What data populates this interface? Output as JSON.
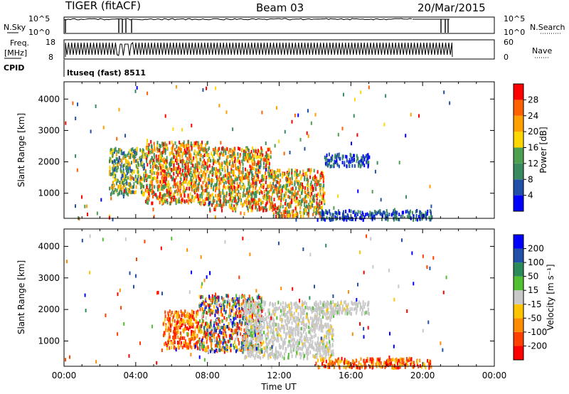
{
  "header": {
    "radar": "TIGER (fitACF)",
    "beam": "Beam 03",
    "date": "20/Mar/2015"
  },
  "strips": {
    "nsky": {
      "label": "N.Sky",
      "ticks": [
        "10^5",
        "10^0"
      ]
    },
    "nsearch": {
      "label": "N.Search",
      "ticks": [
        "10^5",
        "10^0"
      ]
    },
    "freq": {
      "label_line1": "Freq.",
      "label_line2": "[MHz]",
      "ticks": [
        "18",
        "8"
      ]
    },
    "nave": {
      "label": "Nave",
      "ticks": [
        "60",
        "0"
      ]
    },
    "cpid": {
      "label": "CPID",
      "value": "ltuseq (fast) 8511"
    }
  },
  "colors": {
    "power": [
      "#0000ff",
      "#2050a8",
      "#3a8a60",
      "#4ca050",
      "#ffd700",
      "#ffa000",
      "#ff6000",
      "#ff0000"
    ],
    "velocity": [
      "#ff0000",
      "#ff4000",
      "#ff8c00",
      "#ffc400",
      "#c8c8c8",
      "#50c030",
      "#2a8a5a",
      "#2050a8",
      "#0000ff"
    ]
  },
  "chart_data": [
    {
      "type": "heatmap",
      "title": "",
      "xlabel": "Time UT",
      "ylabel": "Slant Range [km]",
      "x_ticks": [
        "00:00",
        "04:00",
        "08:00",
        "12:00",
        "16:00",
        "20:00",
        "00:00"
      ],
      "xlim_hours": [
        0,
        24
      ],
      "y_ticks": [
        1000,
        2000,
        3000,
        4000
      ],
      "ylim": [
        200,
        4550
      ],
      "colorbar": {
        "label": "Power [dB]",
        "ticks": [
          "4",
          "8",
          "12",
          "16",
          "20",
          "24",
          "28"
        ],
        "range": [
          0,
          32
        ]
      },
      "echo_regions": [
        {
          "t_start": 2.5,
          "t_end": 4.5,
          "r_min": 1000,
          "r_max": 2500,
          "level": "mid"
        },
        {
          "t_start": 4.5,
          "t_end": 8.0,
          "r_min": 700,
          "r_max": 2700,
          "level": "high"
        },
        {
          "t_start": 8.0,
          "t_end": 11.5,
          "r_min": 500,
          "r_max": 2500,
          "level": "high"
        },
        {
          "t_start": 11.5,
          "t_end": 14.5,
          "r_min": 300,
          "r_max": 1800,
          "level": "high"
        },
        {
          "t_start": 14.5,
          "t_end": 17.0,
          "r_min": 1900,
          "r_max": 2300,
          "level": "low"
        },
        {
          "t_start": 14.0,
          "t_end": 20.5,
          "r_min": 200,
          "r_max": 500,
          "level": "low"
        }
      ]
    },
    {
      "type": "heatmap",
      "title": "",
      "xlabel": "Time UT",
      "ylabel": "Slant Range [km]",
      "x_ticks": [
        "00:00",
        "04:00",
        "08:00",
        "12:00",
        "16:00",
        "20:00",
        "00:00"
      ],
      "xlim_hours": [
        0,
        24
      ],
      "y_ticks": [
        1000,
        2000,
        3000,
        4000
      ],
      "ylim": [
        200,
        4550
      ],
      "colorbar": {
        "label": "Velocity [m s⁻¹]",
        "ticks": [
          "200",
          "100",
          "50",
          "15",
          "-15",
          "-50",
          "-100",
          "-200"
        ],
        "range": [
          -250,
          250
        ]
      },
      "echo_regions": [
        {
          "t_start": 5.5,
          "t_end": 7.5,
          "r_min": 800,
          "r_max": 2000,
          "level": "negative"
        },
        {
          "t_start": 7.5,
          "t_end": 11.0,
          "r_min": 700,
          "r_max": 2500,
          "level": "mixed"
        },
        {
          "t_start": 10.0,
          "t_end": 15.0,
          "r_min": 500,
          "r_max": 2300,
          "level": "ground"
        },
        {
          "t_start": 14.0,
          "t_end": 17.0,
          "r_min": 1900,
          "r_max": 2300,
          "level": "ground"
        },
        {
          "t_start": 14.0,
          "t_end": 20.5,
          "r_min": 200,
          "r_max": 500,
          "level": "negative"
        }
      ]
    }
  ]
}
